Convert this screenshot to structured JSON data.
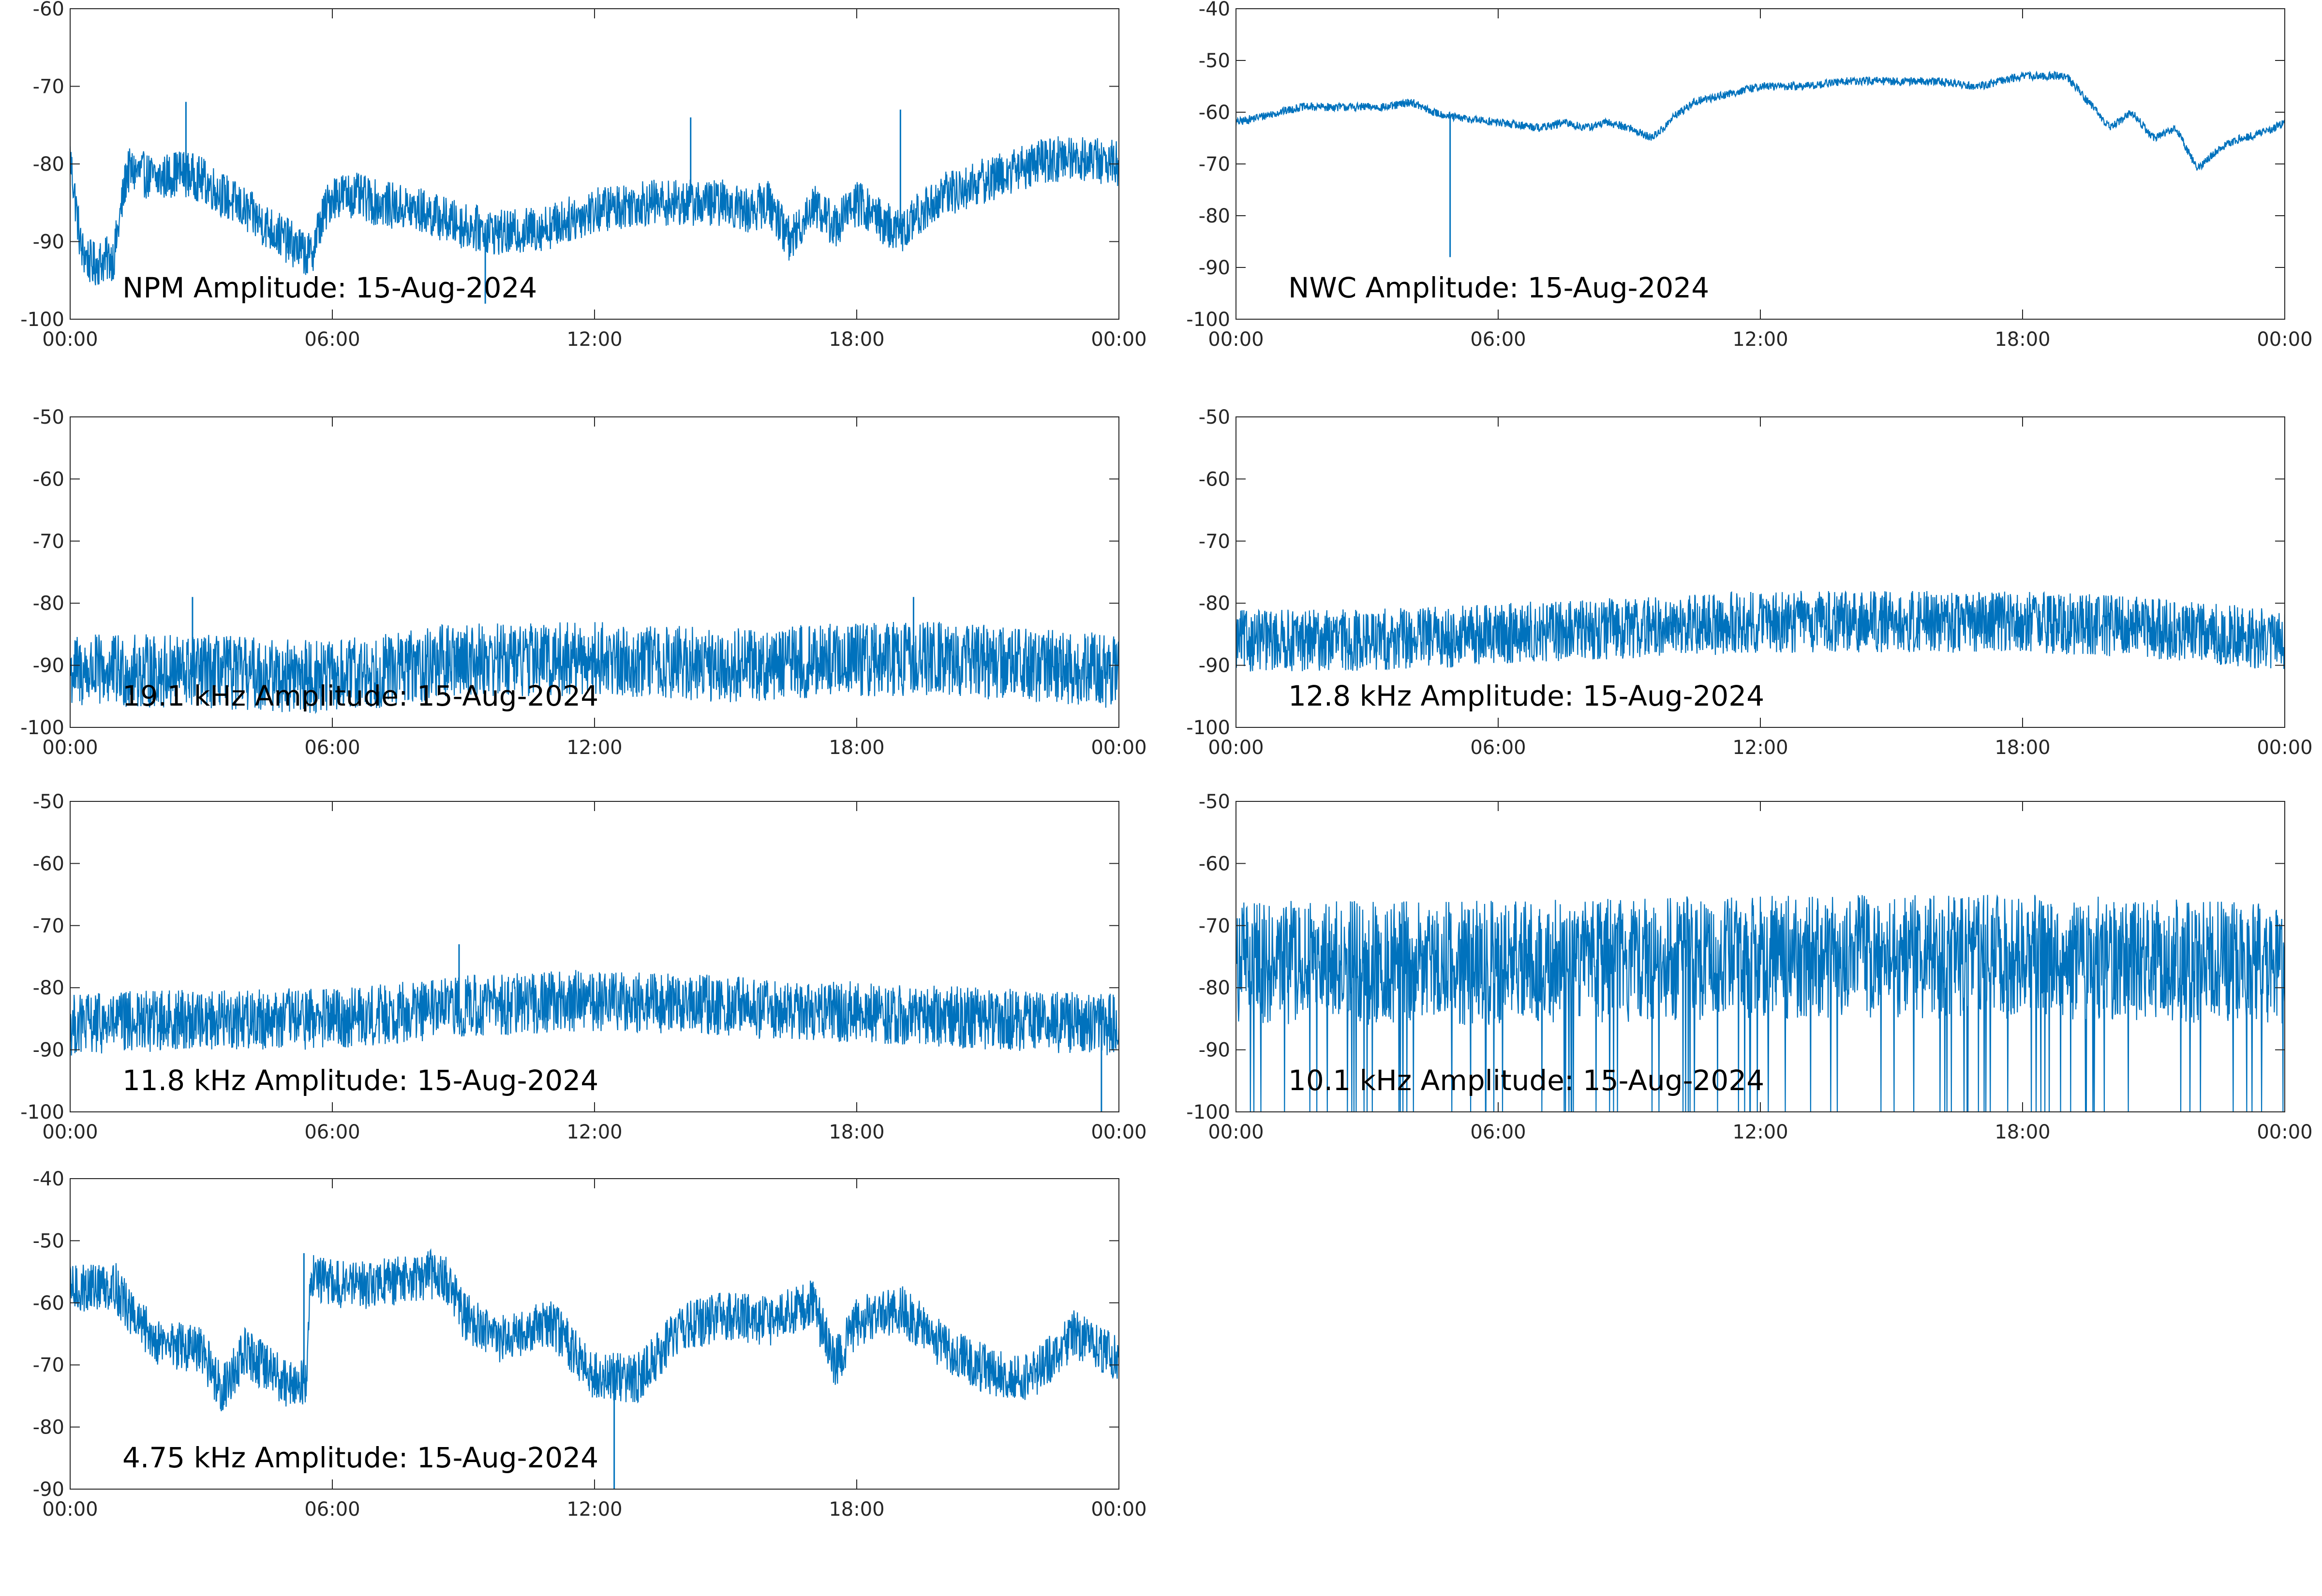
{
  "figure": {
    "series_color": "#0072BD",
    "axis_color": "#262626",
    "background": "#ffffff"
  },
  "chart_data": [
    {
      "type": "line",
      "title": "NPM Amplitude: 15-Aug-2024",
      "x_ticks": [
        "00:00",
        "06:00",
        "12:00",
        "18:00",
        "00:00"
      ],
      "xlim_hours": [
        0,
        24
      ],
      "ylim": [
        -100,
        -60
      ],
      "y_ticks": [
        -60,
        -70,
        -80,
        -90,
        -100
      ],
      "grid": false,
      "series": [
        {
          "x_hours": [
            0,
            0.25,
            0.5,
            1.0,
            1.3,
            1.5,
            2.0,
            2.5,
            3.0,
            3.5,
            4.0,
            4.5,
            5.0,
            5.5,
            5.7,
            6.0,
            6.5,
            7.0,
            8.0,
            9.0,
            10.0,
            11.0,
            12.0,
            13.0,
            14.0,
            15.0,
            15.5,
            16.0,
            16.5,
            17.0,
            17.5,
            18.0,
            19.0,
            19.5,
            20.0,
            21.0,
            22.0,
            23.0,
            24.0
          ],
          "values": [
            -79,
            -91,
            -93,
            -92,
            -81,
            -81,
            -82,
            -81,
            -82,
            -84,
            -86,
            -88,
            -90,
            -92,
            -88,
            -84,
            -84,
            -85,
            -86,
            -88,
            -89,
            -88,
            -86,
            -85,
            -85,
            -85,
            -86,
            -85,
            -90,
            -85,
            -88,
            -85,
            -89,
            -86,
            -84,
            -82,
            -80,
            -79,
            -80
          ],
          "band": 3
        }
      ],
      "spikes": [
        {
          "x_hour": 2.65,
          "value": -72
        },
        {
          "x_hour": 14.2,
          "value": -74
        },
        {
          "x_hour": 19.0,
          "value": -73
        },
        {
          "x_hour": 9.5,
          "value": -98
        }
      ]
    },
    {
      "type": "line",
      "title": "NWC Amplitude: 15-Aug-2024",
      "x_ticks": [
        "00:00",
        "06:00",
        "12:00",
        "18:00",
        "00:00"
      ],
      "xlim_hours": [
        0,
        24
      ],
      "ylim": [
        -100,
        -40
      ],
      "y_ticks": [
        -40,
        -50,
        -60,
        -70,
        -80,
        -90,
        -100
      ],
      "grid": false,
      "series": [
        {
          "x_hours": [
            0,
            1.0,
            1.5,
            2.0,
            3.0,
            3.5,
            4.0,
            4.5,
            5.0,
            6.0,
            7.0,
            7.5,
            8.0,
            8.5,
            9.0,
            9.5,
            9.8,
            10.0,
            10.5,
            11.0,
            12.0,
            13.0,
            14.0,
            15.0,
            16.0,
            17.0,
            18.0,
            18.5,
            19.0,
            19.5,
            20.0,
            20.5,
            21.0,
            21.5,
            22.0,
            22.5,
            23.0,
            23.5,
            24.0
          ],
          "values": [
            -62,
            -60,
            -59,
            -59,
            -59,
            -59,
            -58,
            -60,
            -61,
            -62,
            -63,
            -62,
            -63,
            -62,
            -63,
            -65,
            -63,
            -61,
            -58,
            -57,
            -55,
            -55,
            -54,
            -54,
            -54,
            -55,
            -53,
            -53,
            -53,
            -58,
            -63,
            -60,
            -65,
            -63,
            -71,
            -67,
            -65,
            -64,
            -62
          ],
          "band": 0.8
        }
      ],
      "spikes": [
        {
          "x_hour": 4.9,
          "value": -88
        }
      ]
    },
    {
      "type": "line",
      "title": "19.1 kHz Amplitude: 15-Aug-2024",
      "x_ticks": [
        "00:00",
        "06:00",
        "12:00",
        "18:00",
        "00:00"
      ],
      "xlim_hours": [
        0,
        24
      ],
      "ylim": [
        -100,
        -50
      ],
      "y_ticks": [
        -50,
        -60,
        -70,
        -80,
        -90,
        -100
      ],
      "grid": false,
      "series": [
        {
          "x_hours": [
            0,
            3,
            6,
            9,
            12,
            15,
            18,
            20,
            22,
            24
          ],
          "values": [
            -91,
            -91,
            -92,
            -89,
            -89,
            -90,
            -89,
            -89,
            -90,
            -91
          ],
          "band": 6
        }
      ],
      "spikes": [
        {
          "x_hour": 2.8,
          "value": -79
        },
        {
          "x_hour": 19.3,
          "value": -79
        }
      ]
    },
    {
      "type": "line",
      "title": "12.8 kHz Amplitude: 15-Aug-2024",
      "x_ticks": [
        "00:00",
        "06:00",
        "12:00",
        "18:00",
        "00:00"
      ],
      "xlim_hours": [
        0,
        24
      ],
      "ylim": [
        -100,
        -50
      ],
      "y_ticks": [
        -50,
        -60,
        -70,
        -80,
        -90,
        -100
      ],
      "grid": false,
      "series": [
        {
          "x_hours": [
            0,
            3,
            6,
            9,
            12,
            15,
            18,
            21,
            24
          ],
          "values": [
            -86,
            -86,
            -85,
            -84,
            -83,
            -83,
            -83,
            -84,
            -86
          ],
          "band": 5
        }
      ],
      "spikes": []
    },
    {
      "type": "line",
      "title": "11.8 kHz Amplitude: 15-Aug-2024",
      "x_ticks": [
        "00:00",
        "06:00",
        "12:00",
        "18:00",
        "00:00"
      ],
      "xlim_hours": [
        0,
        24
      ],
      "ylim": [
        -100,
        -50
      ],
      "y_ticks": [
        -50,
        -60,
        -70,
        -80,
        -90,
        -100
      ],
      "grid": false,
      "series": [
        {
          "x_hours": [
            0,
            3,
            6,
            9,
            12,
            15,
            18,
            21,
            24
          ],
          "values": [
            -86,
            -85,
            -85,
            -83,
            -82,
            -83,
            -84,
            -85,
            -86
          ],
          "band": 5
        }
      ],
      "spikes": [
        {
          "x_hour": 8.9,
          "value": -73
        },
        {
          "x_hour": 23.6,
          "value": -100
        }
      ]
    },
    {
      "type": "line",
      "title": "10.1 kHz Amplitude: 15-Aug-2024",
      "x_ticks": [
        "00:00",
        "06:00",
        "12:00",
        "18:00",
        "00:00"
      ],
      "xlim_hours": [
        0,
        24
      ],
      "ylim": [
        -100,
        -50
      ],
      "y_ticks": [
        -50,
        -60,
        -70,
        -80,
        -90,
        -100
      ],
      "grid": false,
      "series": [
        {
          "x_hours": [
            0,
            6,
            12,
            18,
            24
          ],
          "values": [
            -76,
            -76,
            -75,
            -75,
            -76
          ],
          "band": 10,
          "dropouts_to": -100
        }
      ],
      "spikes": []
    },
    {
      "type": "line",
      "title": "4.75 kHz Amplitude: 15-Aug-2024",
      "x_ticks": [
        "00:00",
        "06:00",
        "12:00",
        "18:00",
        "00:00"
      ],
      "xlim_hours": [
        0,
        24
      ],
      "ylim": [
        -90,
        -40
      ],
      "y_ticks": [
        -40,
        -50,
        -60,
        -70,
        -80,
        -90
      ],
      "grid": false,
      "series": [
        {
          "x_hours": [
            0,
            1.0,
            1.5,
            2.0,
            3.0,
            3.5,
            4.0,
            5.0,
            5.4,
            5.5,
            6.0,
            7.0,
            8.0,
            8.5,
            9.0,
            9.5,
            10.0,
            11.0,
            12.0,
            13.0,
            14.0,
            15.0,
            16.0,
            17.0,
            17.5,
            18.0,
            19.0,
            20.0,
            21.0,
            22.0,
            23.0,
            24.0
          ],
          "values": [
            -58,
            -57,
            -63,
            -66,
            -68,
            -74,
            -68,
            -73,
            -73,
            -55,
            -57,
            -57,
            -56,
            -55,
            -62,
            -65,
            -66,
            -63,
            -72,
            -72,
            -64,
            -62,
            -63,
            -60,
            -70,
            -63,
            -61,
            -67,
            -71,
            -72,
            -65,
            -69
          ],
          "band": 4
        }
      ],
      "spikes": [
        {
          "x_hour": 12.45,
          "value": -90
        },
        {
          "x_hour": 5.35,
          "value": -52
        }
      ]
    }
  ]
}
